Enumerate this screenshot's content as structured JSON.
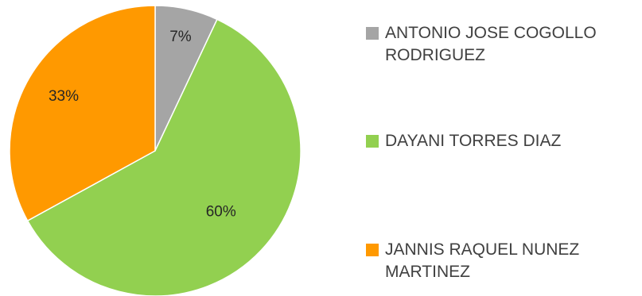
{
  "chart_data": {
    "type": "pie",
    "title": "",
    "slices": [
      {
        "label": "ANTONIO JOSE COGOLLO RODRIGUEZ",
        "value": 7,
        "display": "7%",
        "color": "#a5a5a5"
      },
      {
        "label": "DAYANI TORRES DIAZ",
        "value": 60,
        "display": "60%",
        "color": "#92d050"
      },
      {
        "label": "JANNIS RAQUEL NUNEZ MARTINEZ",
        "value": 33,
        "display": "33%",
        "color": "#ff9900"
      }
    ],
    "legend_position": "right"
  }
}
